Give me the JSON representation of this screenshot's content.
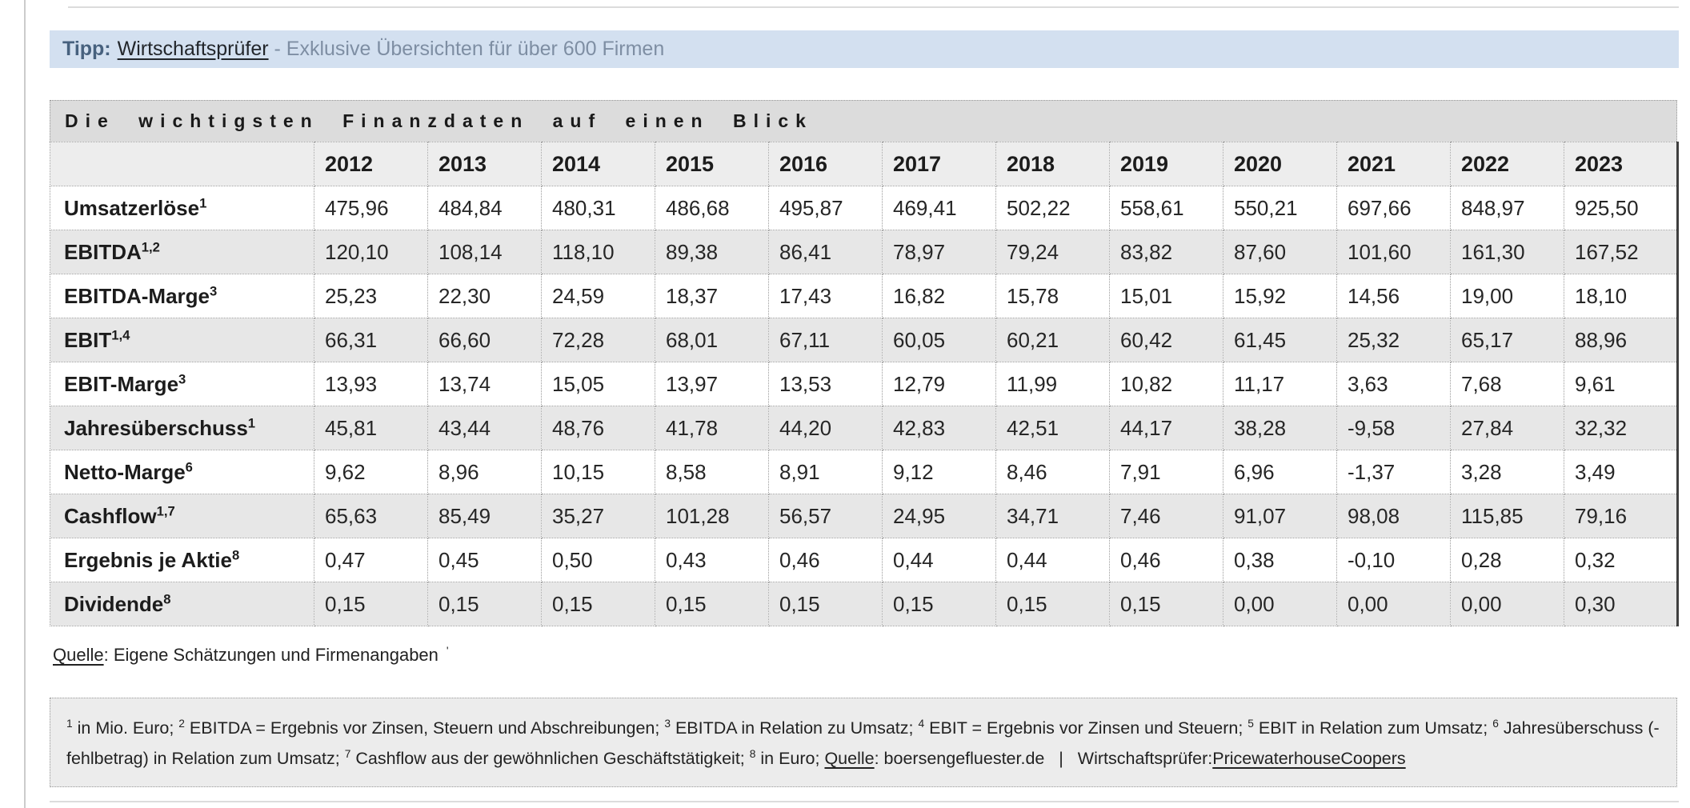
{
  "banner": {
    "tipp_label": "Tipp:",
    "link_text": "Wirtschaftsprüfer",
    "rest_text": "- Exklusive Übersichten für über 600 Firmen"
  },
  "table": {
    "title": "Die wichtigsten Finanzdaten auf einen Blick",
    "years": [
      "2012",
      "2013",
      "2014",
      "2015",
      "2016",
      "2017",
      "2018",
      "2019",
      "2020",
      "2021",
      "2022",
      "2023"
    ],
    "rows": [
      {
        "label": "Umsatzerlöse",
        "sup": "1",
        "values": [
          "475,96",
          "484,84",
          "480,31",
          "486,68",
          "495,87",
          "469,41",
          "502,22",
          "558,61",
          "550,21",
          "697,66",
          "848,97",
          "925,50"
        ]
      },
      {
        "label": "EBITDA",
        "sup": "1,2",
        "values": [
          "120,10",
          "108,14",
          "118,10",
          "89,38",
          "86,41",
          "78,97",
          "79,24",
          "83,82",
          "87,60",
          "101,60",
          "161,30",
          "167,52"
        ]
      },
      {
        "label": "EBITDA-Marge",
        "sup": "3",
        "values": [
          "25,23",
          "22,30",
          "24,59",
          "18,37",
          "17,43",
          "16,82",
          "15,78",
          "15,01",
          "15,92",
          "14,56",
          "19,00",
          "18,10"
        ]
      },
      {
        "label": "EBIT",
        "sup": "1,4",
        "values": [
          "66,31",
          "66,60",
          "72,28",
          "68,01",
          "67,11",
          "60,05",
          "60,21",
          "60,42",
          "61,45",
          "25,32",
          "65,17",
          "88,96"
        ]
      },
      {
        "label": "EBIT-Marge",
        "sup": "3",
        "values": [
          "13,93",
          "13,74",
          "15,05",
          "13,97",
          "13,53",
          "12,79",
          "11,99",
          "10,82",
          "11,17",
          "3,63",
          "7,68",
          "9,61"
        ]
      },
      {
        "label": "Jahresüberschuss",
        "sup": "1",
        "values": [
          "45,81",
          "43,44",
          "48,76",
          "41,78",
          "44,20",
          "42,83",
          "42,51",
          "44,17",
          "38,28",
          "-9,58",
          "27,84",
          "32,32"
        ]
      },
      {
        "label": "Netto-Marge",
        "sup": "6",
        "values": [
          "9,62",
          "8,96",
          "10,15",
          "8,58",
          "8,91",
          "9,12",
          "8,46",
          "7,91",
          "6,96",
          "-1,37",
          "3,28",
          "3,49"
        ]
      },
      {
        "label": "Cashflow",
        "sup": "1,7",
        "values": [
          "65,63",
          "85,49",
          "35,27",
          "101,28",
          "56,57",
          "24,95",
          "34,71",
          "7,46",
          "91,07",
          "98,08",
          "115,85",
          "79,16"
        ]
      },
      {
        "label": "Ergebnis je Aktie",
        "sup": "8",
        "values": [
          "0,47",
          "0,45",
          "0,50",
          "0,43",
          "0,46",
          "0,44",
          "0,44",
          "0,46",
          "0,38",
          "-0,10",
          "0,28",
          "0,32"
        ]
      },
      {
        "label": "Dividende",
        "sup": "8",
        "values": [
          "0,15",
          "0,15",
          "0,15",
          "0,15",
          "0,15",
          "0,15",
          "0,15",
          "0,15",
          "0,00",
          "0,00",
          "0,00",
          "0,30"
        ]
      }
    ]
  },
  "source": {
    "label": "Quelle",
    "text": ": Eigene Schätzungen und Firmenangaben",
    "mark": "'"
  },
  "footnote": {
    "segments": [
      {
        "t": "sup",
        "text": "1"
      },
      {
        "t": "text",
        "text": " in Mio. Euro; "
      },
      {
        "t": "sup",
        "text": "2"
      },
      {
        "t": "text",
        "text": " EBITDA = Ergebnis vor Zinsen, Steuern und Abschreibungen; "
      },
      {
        "t": "sup",
        "text": "3"
      },
      {
        "t": "text",
        "text": " EBITDA in Relation zu Umsatz; "
      },
      {
        "t": "sup",
        "text": "4"
      },
      {
        "t": "text",
        "text": " EBIT = Ergebnis vor Zinsen und Steuern; "
      },
      {
        "t": "sup",
        "text": "5"
      },
      {
        "t": "text",
        "text": " EBIT in Relation zum Umsatz; "
      },
      {
        "t": "sup",
        "text": "6"
      },
      {
        "t": "text",
        "text": " Jahresüberschuss (-fehlbetrag) in Relation zum Umsatz; "
      },
      {
        "t": "sup",
        "text": "7"
      },
      {
        "t": "text",
        "text": " Cashflow aus der gewöhnlichen Geschäftstätigkeit; "
      },
      {
        "t": "sup",
        "text": "8"
      },
      {
        "t": "text",
        "text": " in Euro; "
      },
      {
        "t": "link",
        "text": "Quelle",
        "name": "footnote-quelle-link"
      },
      {
        "t": "text",
        "text": ": boersengefluester.de   |   Wirtschaftsprüfer:"
      },
      {
        "t": "link",
        "text": "PricewaterhouseCoopers",
        "name": "pricewaterhousecoopers-link"
      }
    ]
  },
  "colors": {
    "banner_bg": "#d3e0f0",
    "banner_accent": "#47617e",
    "banner_muted": "#7e8ea3",
    "title_bar_bg": "#dcdcdc",
    "header_row_bg": "#ededed",
    "row_shade_bg": "#e7e7e7",
    "border_dotted": "#999999",
    "table_right_border": "#3f3f3f"
  }
}
